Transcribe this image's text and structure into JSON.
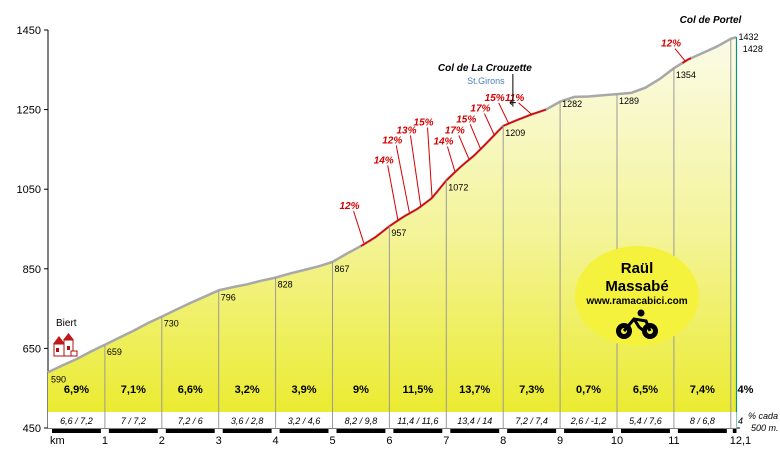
{
  "chart_data": {
    "type": "area",
    "y_axis": {
      "ticks": [
        450,
        650,
        850,
        1050,
        1250,
        1450
      ],
      "ylim": [
        450,
        1450
      ]
    },
    "x_axis": {
      "unit_label": "km",
      "ticks": [
        "1",
        "2",
        "3",
        "4",
        "5",
        "6",
        "7",
        "8",
        "9",
        "10",
        "11",
        "12,1"
      ],
      "xlim": [
        0,
        12.1
      ]
    },
    "profile": {
      "x": [
        0,
        0.25,
        0.5,
        0.75,
        1,
        1.25,
        1.5,
        1.75,
        2,
        2.25,
        2.5,
        2.75,
        3,
        3.25,
        3.5,
        3.75,
        4,
        4.25,
        4.5,
        4.75,
        5,
        5.25,
        5.5,
        5.75,
        6,
        6.25,
        6.5,
        6.75,
        7,
        7.25,
        7.5,
        7.75,
        8,
        8.25,
        8.5,
        8.75,
        9,
        9.25,
        9.5,
        9.75,
        10,
        10.25,
        10.5,
        10.75,
        11,
        11.25,
        11.5,
        11.75,
        12,
        12.1
      ],
      "y": [
        590,
        607,
        623,
        642,
        659,
        677,
        694,
        713,
        730,
        747,
        764,
        780,
        796,
        804,
        811,
        820,
        828,
        838,
        847,
        856,
        867,
        888,
        907,
        929,
        957,
        981,
        1001,
        1028,
        1072,
        1106,
        1136,
        1172,
        1209,
        1224,
        1238,
        1250,
        1270,
        1282,
        1283,
        1286,
        1289,
        1292,
        1305,
        1327,
        1354,
        1376,
        1392,
        1408,
        1428,
        1432
      ]
    },
    "elevations": [
      {
        "x": 0,
        "y": 590,
        "label": "590"
      },
      {
        "x": 1,
        "y": 659,
        "label": "659"
      },
      {
        "x": 2,
        "y": 730,
        "label": "730"
      },
      {
        "x": 3,
        "y": 796,
        "label": "796"
      },
      {
        "x": 4,
        "y": 828,
        "label": "828"
      },
      {
        "x": 5,
        "y": 867,
        "label": "867"
      },
      {
        "x": 6,
        "y": 957,
        "label": "957"
      },
      {
        "x": 7,
        "y": 1072,
        "label": "1072"
      },
      {
        "x": 8,
        "y": 1209,
        "label": "1209"
      },
      {
        "x": 9,
        "y": 1282,
        "label": "1282"
      },
      {
        "x": 10,
        "y": 1289,
        "label": "1289"
      },
      {
        "x": 11,
        "y": 1354,
        "label": "1354"
      },
      {
        "x": 12,
        "y": 1428,
        "label": "1428"
      },
      {
        "x": 12.1,
        "y": 1432,
        "label": "1432"
      }
    ],
    "segment_gradients": [
      "6,9%",
      "7,1%",
      "6,6%",
      "3,2%",
      "3,9%",
      "9%",
      "11,5%",
      "13,7%",
      "7,3%",
      "0,7%",
      "6,5%",
      "7,4%",
      "4%"
    ],
    "half_km_gradients": [
      "6,6 / 7,2",
      "7 / 7,2",
      "7,2 / 6",
      "3,6 / 2,8",
      "3,2 / 4,6",
      "8,2 / 9,8",
      "11,4 / 11,6",
      "13,4 / 14",
      "7,2 / 7,4",
      "2,6 / -1,2",
      "5,4 / 7,6",
      "8 / 6,8",
      "4"
    ],
    "half_km_caption": [
      "% cada",
      "500 m."
    ],
    "steep_ramps": [
      {
        "x": 5.55,
        "y": 915,
        "label": "12%",
        "lx": 5.3,
        "ly": 1000
      },
      {
        "x": 6.15,
        "y": 972,
        "label": "14%",
        "lx": 5.9,
        "ly": 1115
      },
      {
        "x": 6.35,
        "y": 992,
        "label": "12%",
        "lx": 6.05,
        "ly": 1165
      },
      {
        "x": 6.55,
        "y": 1008,
        "label": "13%",
        "lx": 6.3,
        "ly": 1190
      },
      {
        "x": 6.75,
        "y": 1028,
        "label": "15%",
        "lx": 6.6,
        "ly": 1210
      },
      {
        "x": 7.15,
        "y": 1095,
        "label": "14%",
        "lx": 6.95,
        "ly": 1162
      },
      {
        "x": 7.4,
        "y": 1125,
        "label": "17%",
        "lx": 7.15,
        "ly": 1190
      },
      {
        "x": 7.6,
        "y": 1152,
        "label": "15%",
        "lx": 7.35,
        "ly": 1218
      },
      {
        "x": 7.85,
        "y": 1184,
        "label": "17%",
        "lx": 7.6,
        "ly": 1245
      },
      {
        "x": 8.1,
        "y": 1214,
        "label": "15%",
        "lx": 7.85,
        "ly": 1272
      },
      {
        "x": 8.5,
        "y": 1238,
        "label": "11%",
        "lx": 8.2,
        "ly": 1272
      },
      {
        "x": 11.2,
        "y": 1372,
        "label": "12%",
        "lx": 10.95,
        "ly": 1408
      }
    ],
    "red_sections": [
      [
        5.5,
        6.0
      ],
      [
        6.0,
        8.75
      ],
      [
        11.15,
        11.3
      ]
    ],
    "passes": [
      {
        "x": 8.75,
        "y": 1250,
        "name": "Col de La Crouzette",
        "sign": "St.Girons"
      },
      {
        "x": 12.1,
        "y": 1432,
        "name": "Col de Portel"
      }
    ],
    "start_town": "Biert",
    "logo": {
      "line1": "Raül",
      "line2": "Massabé",
      "line3": "www.ramacabici.com"
    }
  }
}
